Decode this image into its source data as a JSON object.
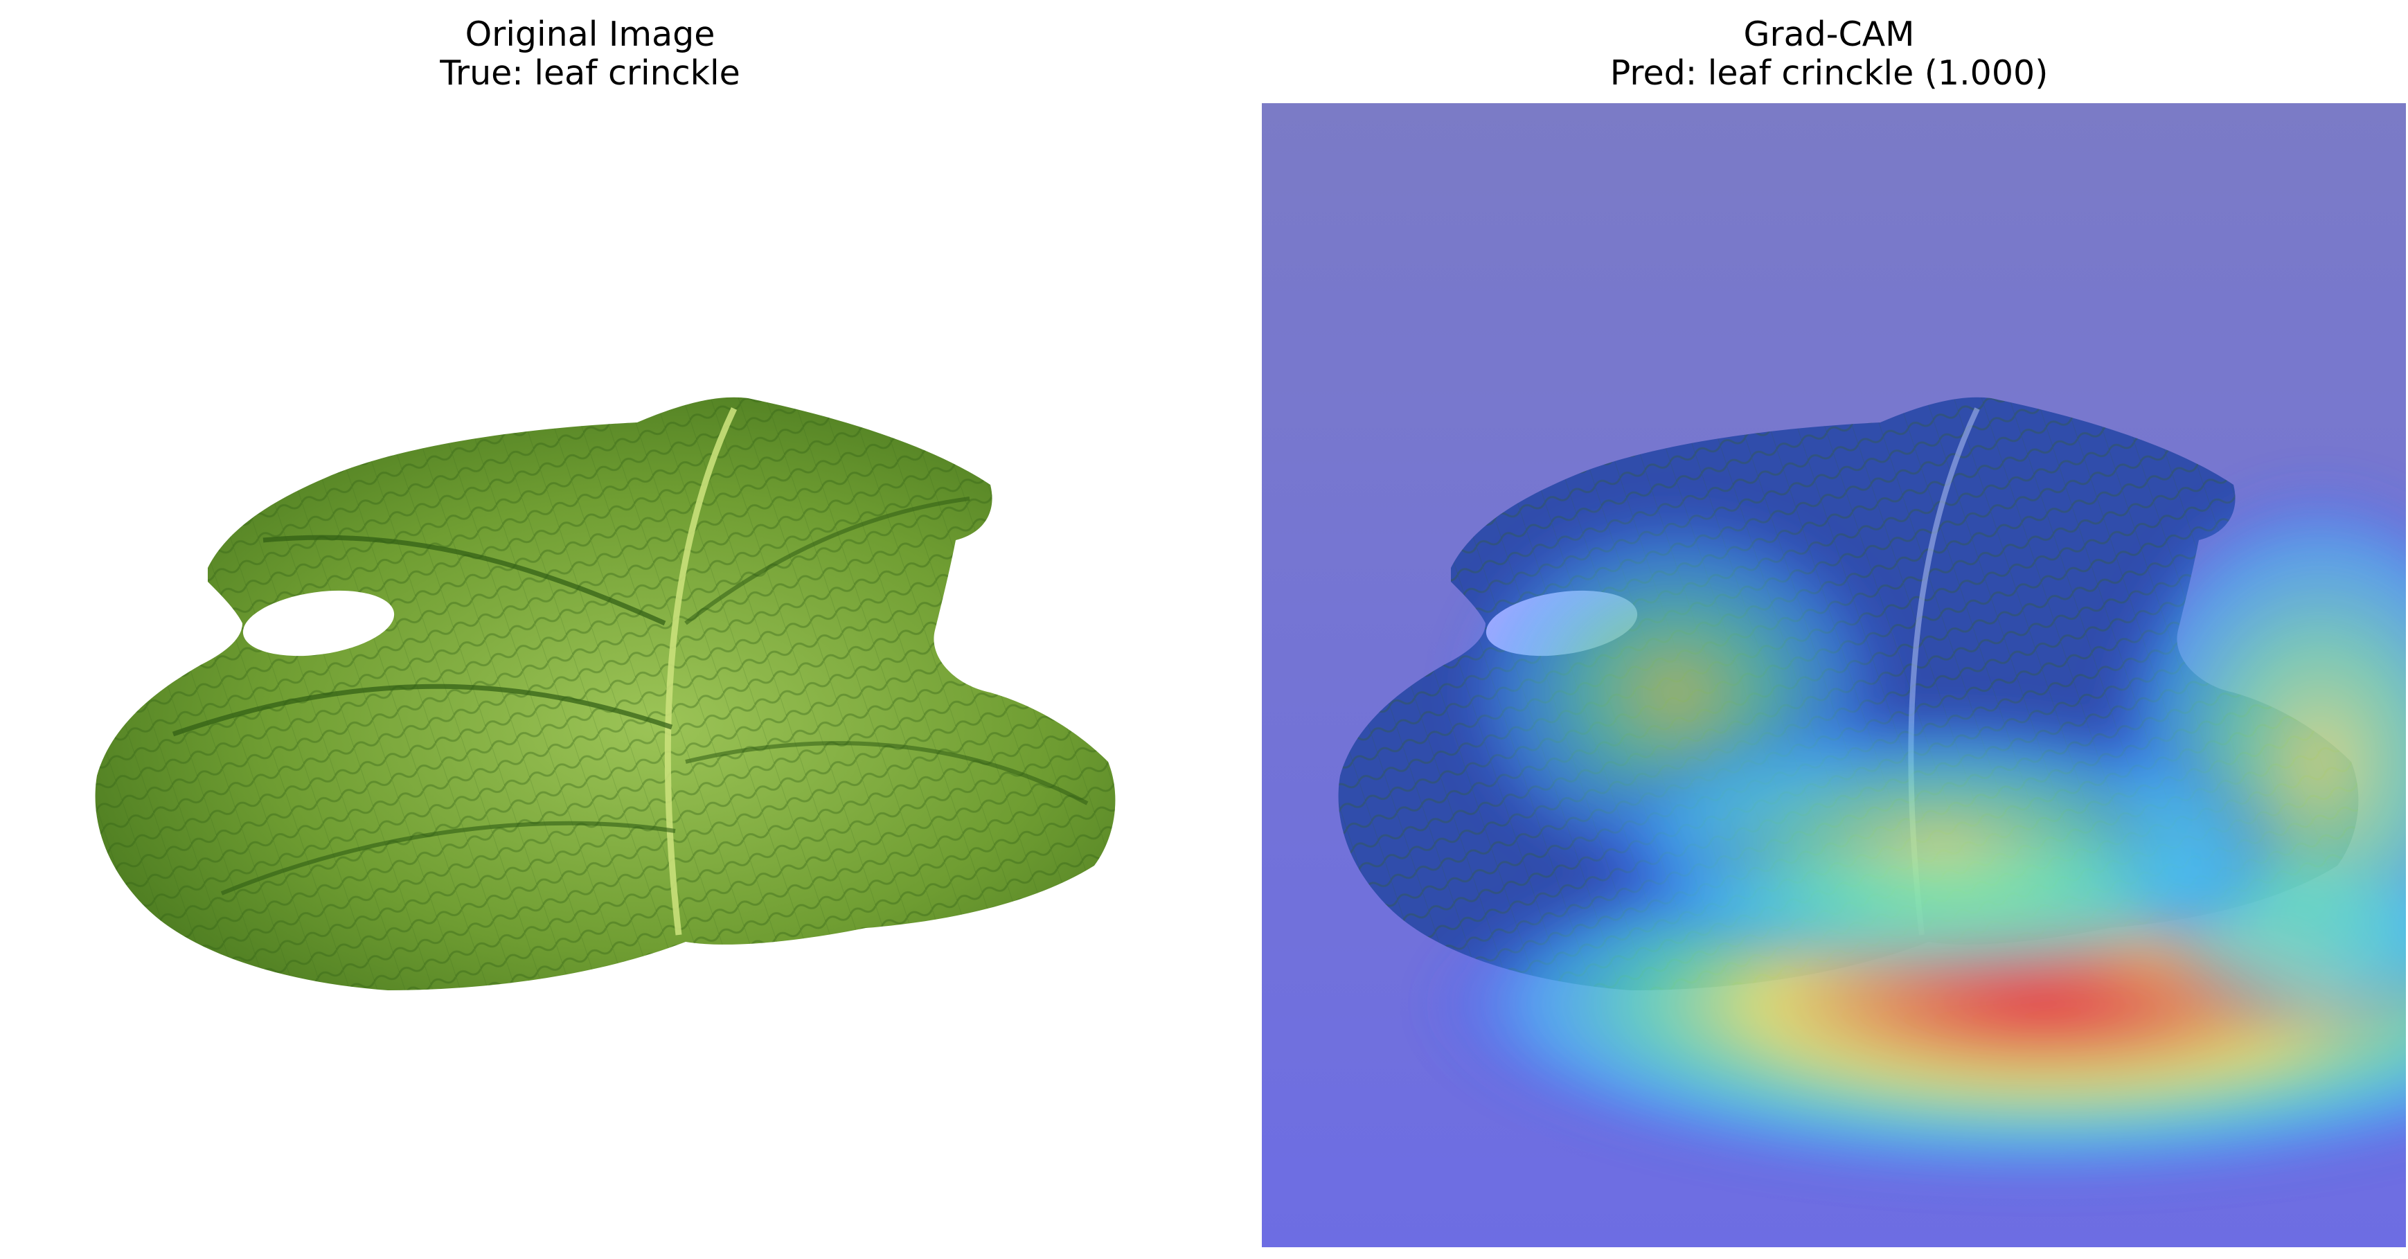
{
  "panels": {
    "left": {
      "title_line1": "Original Image",
      "title_line2": "True: leaf crinckle"
    },
    "right": {
      "title_line1": "Grad-CAM",
      "title_line2": "Pred: leaf crinckle (1.000)"
    }
  },
  "colors": {
    "background": "#ffffff",
    "leaf_light": "#9cc457",
    "leaf_mid": "#6f9d32",
    "leaf_dark": "#2f5d14",
    "vein": "#c9e07a",
    "overlay_base": "#7f7fbf",
    "heat_blue": "#2030ff",
    "heat_cyan": "#40e0ff",
    "heat_green": "#60ff60",
    "heat_yellow": "#ffff40",
    "heat_red": "#ff3030"
  }
}
